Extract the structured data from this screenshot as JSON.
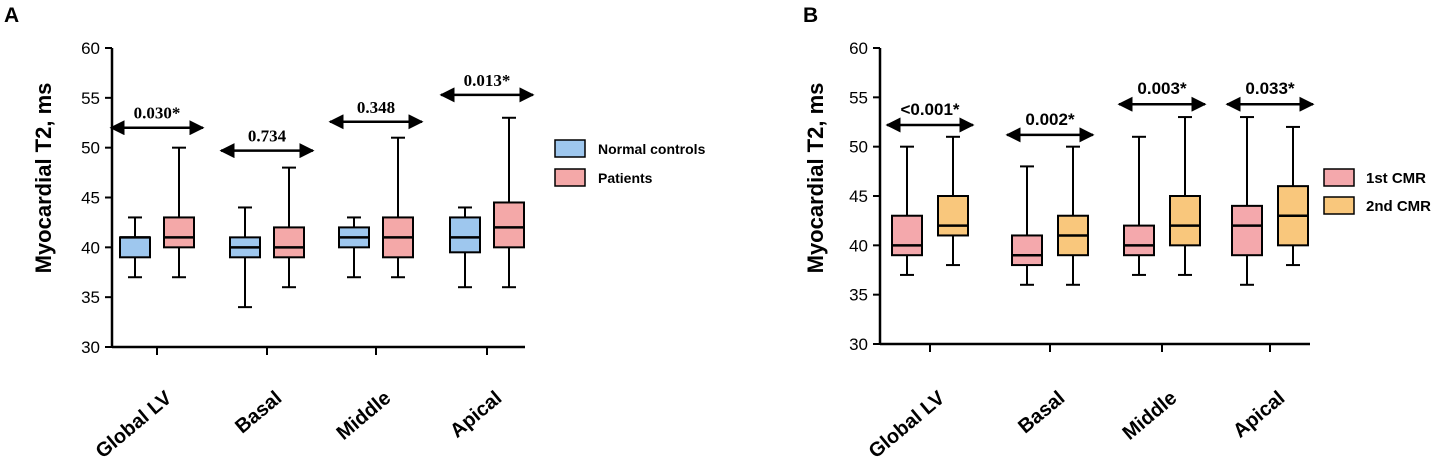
{
  "chart_data": [
    {
      "panel": "A",
      "type": "box",
      "ylabel": "Myocardial T2, ms",
      "ylim": [
        30,
        60
      ],
      "yticks": [
        30,
        35,
        40,
        45,
        50,
        55,
        60
      ],
      "categories": [
        "Global LV",
        "Basal",
        "Middle",
        "Apical"
      ],
      "series": [
        {
          "name": "Normal controls",
          "color": "#9ec7ee",
          "boxes": [
            {
              "min": 37,
              "q1": 39,
              "median": 41,
              "q3": 41,
              "max": 43
            },
            {
              "min": 34,
              "q1": 39,
              "median": 40,
              "q3": 41,
              "max": 44
            },
            {
              "min": 37,
              "q1": 40,
              "median": 41,
              "q3": 42,
              "max": 43
            },
            {
              "min": 36,
              "q1": 39.5,
              "median": 41,
              "q3": 43,
              "max": 44
            }
          ]
        },
        {
          "name": "Patients",
          "color": "#f4a8a8",
          "boxes": [
            {
              "min": 37,
              "q1": 40,
              "median": 41,
              "q3": 43,
              "max": 50
            },
            {
              "min": 36,
              "q1": 39,
              "median": 40,
              "q3": 42,
              "max": 48
            },
            {
              "min": 37,
              "q1": 39,
              "median": 41,
              "q3": 43,
              "max": 51
            },
            {
              "min": 36,
              "q1": 40,
              "median": 42,
              "q3": 44.5,
              "max": 53
            }
          ]
        }
      ],
      "annotations": [
        {
          "label": "0.030*",
          "y": 52
        },
        {
          "label": "0.734",
          "y": 49.7
        },
        {
          "label": "0.348",
          "y": 52.6
        },
        {
          "label": "0.013*",
          "y": 55.3
        }
      ],
      "legend_position": "right"
    },
    {
      "panel": "B",
      "type": "box",
      "ylabel": "Myocardial T2, ms",
      "ylim": [
        30,
        60
      ],
      "yticks": [
        30,
        35,
        40,
        45,
        50,
        55,
        60
      ],
      "categories": [
        "Global LV",
        "Basal",
        "Middle",
        "Apical"
      ],
      "series": [
        {
          "name": "1st CMR",
          "color": "#f4a8ac",
          "boxes": [
            {
              "min": 37,
              "q1": 39,
              "median": 40,
              "q3": 43,
              "max": 50
            },
            {
              "min": 36,
              "q1": 38,
              "median": 39,
              "q3": 41,
              "max": 48
            },
            {
              "min": 37,
              "q1": 39,
              "median": 40,
              "q3": 42,
              "max": 51
            },
            {
              "min": 36,
              "q1": 39,
              "median": 42,
              "q3": 44,
              "max": 53
            }
          ]
        },
        {
          "name": "2nd CMR",
          "color": "#f9c77c",
          "boxes": [
            {
              "min": 38,
              "q1": 41,
              "median": 42,
              "q3": 45,
              "max": 51
            },
            {
              "min": 36,
              "q1": 39,
              "median": 41,
              "q3": 43,
              "max": 50
            },
            {
              "min": 37,
              "q1": 40,
              "median": 42,
              "q3": 45,
              "max": 53
            },
            {
              "min": 38,
              "q1": 40,
              "median": 43,
              "q3": 46,
              "max": 52
            }
          ]
        }
      ],
      "annotations": [
        {
          "label": "<0.001*",
          "y": 52.2
        },
        {
          "label": "0.002*",
          "y": 51.2
        },
        {
          "label": "0.003*",
          "y": 54.3
        },
        {
          "label": "0.033*",
          "y": 54.3
        }
      ],
      "legend_position": "right"
    }
  ]
}
